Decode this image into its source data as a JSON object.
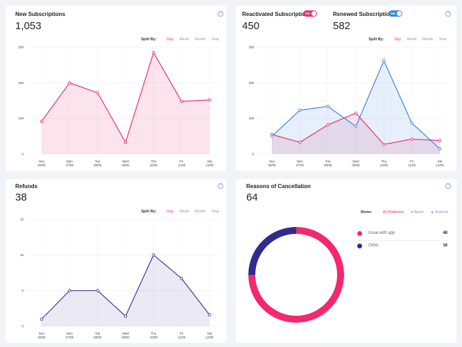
{
  "new_subscriptions": {
    "title": "New Subscriptions",
    "value": "1,053"
  },
  "reactivated": {
    "title": "Reactivated Subscriptions",
    "value": "450",
    "toggle": "ON",
    "color": "#e8306d"
  },
  "renewed": {
    "title": "Renewed Subscriptions",
    "value": "582",
    "toggle": "ON",
    "color": "#3a87e0"
  },
  "refunds": {
    "title": "Refunds",
    "value": "38"
  },
  "cancellation": {
    "title": "Reasons of Cancellation",
    "value": "64",
    "show_label": "Show:",
    "platforms": [
      "All Platforms",
      "Apple",
      "Android"
    ],
    "legend": [
      {
        "label": "Issue with app",
        "count": "48",
        "color": "#f2296e"
      },
      {
        "label": "Other",
        "count": "16",
        "color": "#2e2d8f"
      }
    ]
  },
  "split_by": {
    "label": "Split By:",
    "options": [
      "Day",
      "Week",
      "Month",
      "Year"
    ],
    "active": "Day"
  },
  "help_glyph": "?",
  "chart_data": [
    {
      "type": "area",
      "categories": [
        "Sun 06/06",
        "Mon 07/06",
        "Tue 08/06",
        "Wed 09/06",
        "Thu 10/06",
        "Fri 11/06",
        "Sat 12/06"
      ],
      "series": [
        {
          "values": [
            92,
            200,
            172,
            33,
            285,
            148,
            152
          ],
          "color": "#e8306d"
        }
      ],
      "ylim": [
        0,
        300
      ],
      "yticks": [
        "0",
        "100",
        "200",
        "300"
      ],
      "grid": true
    },
    {
      "type": "area",
      "categories": [
        "Sun 06/06",
        "Mon 07/06",
        "Tue 08/06",
        "Wed 09/06",
        "Thu 10/06",
        "Fri 11/06",
        "Sat 12/06"
      ],
      "series": [
        {
          "name": "Reactivated Subscriptions",
          "values": [
            55,
            33,
            82,
            115,
            27,
            42,
            38
          ],
          "color": "#e8306d"
        },
        {
          "name": "Renewed Subscriptions",
          "values": [
            50,
            123,
            134,
            78,
            262,
            87,
            15
          ],
          "color": "#3a87e0"
        }
      ],
      "ylim": [
        0,
        300
      ],
      "yticks": [
        "0",
        "100",
        "200",
        "300"
      ],
      "grid": true
    },
    {
      "type": "area",
      "categories": [
        "Sun 06/06",
        "Mon 07/06",
        "Tue 08/06",
        "Wed 09/06",
        "Thu 10/06",
        "Fri 11/06",
        "Sat 12/06"
      ],
      "series": [
        {
          "values": [
            1,
            5,
            5,
            1.4,
            10,
            6.7,
            1.6
          ],
          "color": "#3d3a9c"
        }
      ],
      "ylim": [
        0,
        15
      ],
      "yticks": [
        "0",
        "5",
        "10",
        "15"
      ],
      "grid": true
    },
    {
      "type": "pie",
      "categories": [
        "Issue with app",
        "Other"
      ],
      "values": [
        48,
        16
      ],
      "colors": [
        "#f2296e",
        "#2e2d8f"
      ]
    }
  ]
}
